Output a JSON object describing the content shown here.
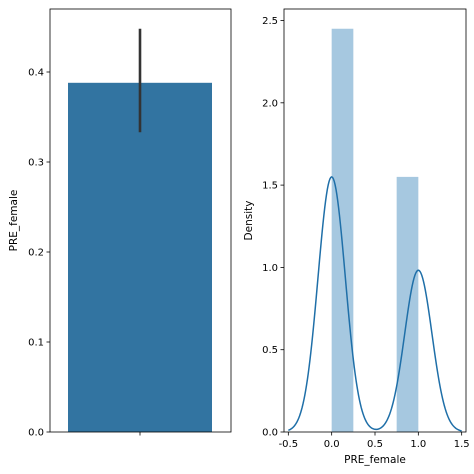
{
  "chart_data": [
    {
      "type": "bar",
      "categories": [
        ""
      ],
      "values": [
        0.388
      ],
      "error_bar": {
        "low": 0.333,
        "high": 0.448
      },
      "xlabel": "",
      "ylabel": "PRE_female",
      "ylim": [
        0,
        0.47
      ],
      "yticks": [
        0.0,
        0.1,
        0.2,
        0.3,
        0.4
      ],
      "ytick_labels": [
        "0.0",
        "0.1",
        "0.2",
        "0.3",
        "0.4"
      ],
      "grid": false,
      "colors": {
        "bar": "#3274a1",
        "error": "#333333"
      }
    },
    {
      "type": "histogram+kde",
      "xlabel": "PRE_female",
      "ylabel": "Density",
      "xlim": [
        -0.55,
        1.55
      ],
      "ylim": [
        0,
        2.57
      ],
      "xticks": [
        -0.5,
        0.0,
        0.5,
        1.0,
        1.5
      ],
      "xtick_labels": [
        "-0.5",
        "0.0",
        "0.5",
        "1.0",
        "1.5"
      ],
      "yticks": [
        0.0,
        0.5,
        1.0,
        1.5,
        2.0,
        2.5
      ],
      "ytick_labels": [
        "0.0",
        "0.5",
        "1.0",
        "1.5",
        "2.0",
        "2.5"
      ],
      "bins": [
        {
          "x0": 0.0,
          "x1": 0.25,
          "density": 2.45
        },
        {
          "x0": 0.75,
          "x1": 1.0,
          "density": 1.55
        }
      ],
      "kde": {
        "x_range": [
          -0.5,
          1.5
        ],
        "components": [
          {
            "center": 0.0,
            "sigma": 0.1575,
            "weight": 0.612
          },
          {
            "center": 1.0,
            "sigma": 0.1575,
            "weight": 0.388
          }
        ]
      },
      "grid": false,
      "colors": {
        "hist": "#a6c8e0",
        "kde": "#1f6fa8"
      }
    }
  ]
}
